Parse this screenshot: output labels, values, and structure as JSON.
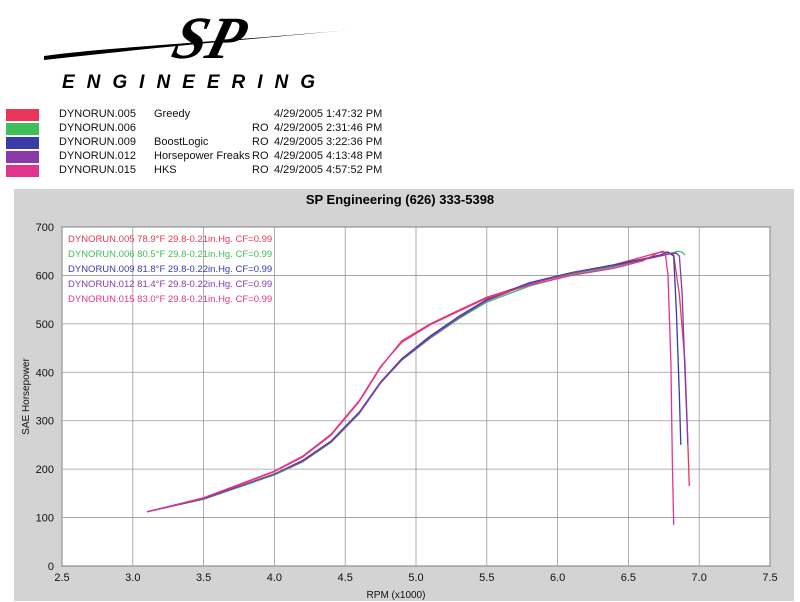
{
  "header": {
    "brand_mark": "SP",
    "brand_name": "ENGINEERING"
  },
  "legend": [
    {
      "run": "DYNORUN.005",
      "desc": "Greedy",
      "ro": "",
      "date": "4/29/2005 1:47:32 PM",
      "color": "#e8365a"
    },
    {
      "run": "DYNORUN.006",
      "desc": "",
      "ro": "RO",
      "date": "4/29/2005 2:31:46 PM",
      "color": "#3fbf5a"
    },
    {
      "run": "DYNORUN.009",
      "desc": "BoostLogic",
      "ro": "RO",
      "date": "4/29/2005 3:22:36 PM",
      "color": "#3a3aa8"
    },
    {
      "run": "DYNORUN.012",
      "desc": "Horsepower Freaks",
      "ro": "RO",
      "date": "4/29/2005 4:13:48 PM",
      "color": "#8a3aaa"
    },
    {
      "run": "DYNORUN.015",
      "desc": "HKS",
      "ro": "RO",
      "date": "4/29/2005 4:57:52 PM",
      "color": "#e0358f"
    }
  ],
  "chart_data": {
    "type": "line",
    "title": "SP Engineering (626) 333-5398",
    "xlabel": "RPM (x1000)",
    "ylabel": "SAE Horsepower",
    "xlim": [
      2.5,
      7.5
    ],
    "ylim": [
      0,
      700
    ],
    "xticks": [
      "2.5",
      "3.0",
      "3.5",
      "4.0",
      "4.5",
      "5.0",
      "5.5",
      "6.0",
      "6.5",
      "7.0",
      "7.5"
    ],
    "yticks": [
      "0",
      "100",
      "200",
      "300",
      "400",
      "500",
      "600",
      "700"
    ],
    "grid": true,
    "annotations": [
      {
        "text": "DYNORUN.005   78.9°F   29.8-0.21in.Hg.   CF=0.99",
        "color": "#e8365a"
      },
      {
        "text": "DYNORUN.006   80.5°F   29.8-0.21in.Hg.   CF=0.99",
        "color": "#3fbf5a"
      },
      {
        "text": "DYNORUN.009   81.8°F   29.8-0.22in.Hg.   CF=0.99",
        "color": "#3a3aa8"
      },
      {
        "text": "DYNORUN.012   81.4°F   29.8-0.22in.Hg.   CF=0.99",
        "color": "#8a3aaa"
      },
      {
        "text": "DYNORUN.015   83.0°F   29.8-0.21in.Hg.   CF=0.99",
        "color": "#e0358f"
      }
    ],
    "series": [
      {
        "name": "DYNORUN.005",
        "color": "#e8365a",
        "x": [
          3.1,
          3.5,
          4.0,
          4.2,
          4.4,
          4.6,
          4.75,
          4.9,
          5.1,
          5.3,
          5.5,
          5.8,
          6.1,
          6.4,
          6.6,
          6.72,
          6.78,
          6.82,
          6.86,
          6.9,
          6.92,
          6.93
        ],
        "y": [
          112,
          140,
          195,
          225,
          270,
          340,
          410,
          465,
          500,
          528,
          555,
          583,
          604,
          622,
          638,
          648,
          648,
          642,
          560,
          420,
          250,
          165
        ]
      },
      {
        "name": "DYNORUN.006",
        "color": "#3fbf5a",
        "x": [
          3.1,
          3.5,
          4.0,
          4.2,
          4.4,
          4.6,
          4.75,
          4.9,
          5.1,
          5.3,
          5.5,
          5.8,
          6.1,
          6.4,
          6.6,
          6.75,
          6.85,
          6.88,
          6.9
        ],
        "y": [
          112,
          138,
          188,
          215,
          255,
          315,
          378,
          425,
          470,
          510,
          545,
          578,
          602,
          618,
          632,
          642,
          650,
          648,
          642
        ]
      },
      {
        "name": "DYNORUN.009",
        "color": "#3a3aa8",
        "x": [
          3.1,
          3.5,
          4.0,
          4.2,
          4.4,
          4.6,
          4.75,
          4.9,
          5.1,
          5.3,
          5.5,
          5.8,
          6.1,
          6.4,
          6.6,
          6.72,
          6.78,
          6.82,
          6.84,
          6.86,
          6.87
        ],
        "y": [
          112,
          139,
          190,
          218,
          258,
          318,
          380,
          428,
          475,
          515,
          550,
          585,
          606,
          622,
          634,
          642,
          648,
          640,
          520,
          350,
          250
        ]
      },
      {
        "name": "DYNORUN.012",
        "color": "#8a3aaa",
        "x": [
          3.1,
          3.5,
          4.0,
          4.2,
          4.4,
          4.6,
          4.75,
          4.9,
          5.1,
          5.3,
          5.5,
          5.8,
          6.1,
          6.4,
          6.6,
          6.72,
          6.8,
          6.84,
          6.86,
          6.88,
          6.9,
          6.92
        ],
        "y": [
          112,
          139,
          190,
          216,
          256,
          316,
          378,
          426,
          472,
          512,
          548,
          583,
          605,
          620,
          632,
          640,
          645,
          646,
          640,
          560,
          400,
          250
        ]
      },
      {
        "name": "DYNORUN.015",
        "color": "#e0358f",
        "x": [
          3.1,
          3.5,
          4.0,
          4.2,
          4.4,
          4.6,
          4.75,
          4.9,
          5.1,
          5.3,
          5.5,
          5.8,
          6.1,
          6.4,
          6.6,
          6.7,
          6.74,
          6.76,
          6.78,
          6.8,
          6.81,
          6.82
        ],
        "y": [
          112,
          141,
          196,
          227,
          272,
          342,
          412,
          462,
          498,
          526,
          553,
          580,
          600,
          615,
          630,
          645,
          650,
          648,
          600,
          420,
          220,
          85
        ]
      }
    ]
  }
}
